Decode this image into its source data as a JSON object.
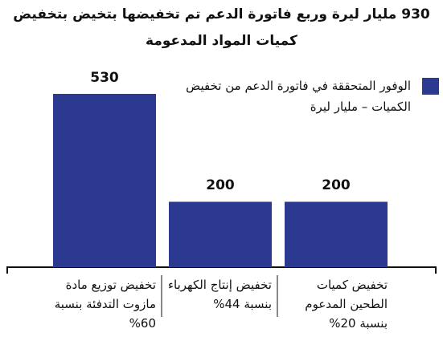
{
  "chart_data": {
    "type": "bar",
    "title": "930 مليار ليرة وربع فاتورة الدعم تم تخفيضها بتخيض بتخفيض كميات المواد المدعومة",
    "categories": [
      "تخفيض توزيع مادة مازوت التدفئة بنسبة 60%",
      "تخفيض إنتاج الكهرباء بنسبة 44%",
      "تخفيض كميات الطحين المدعوم بنسبة 20%"
    ],
    "series": [
      {
        "name": "الوفور المتحققة في فاتورة الدعم من تخفيض الكميات – مليار ليرة",
        "color": "#2b3990",
        "values": [
          530,
          200,
          200
        ]
      }
    ]
  }
}
